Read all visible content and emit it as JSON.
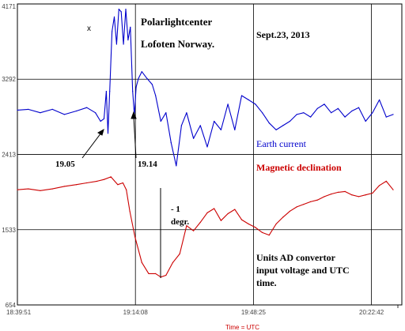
{
  "chart_data": {
    "type": "line",
    "title": "Polarlightcenter",
    "subtitle": "Lofoten Norway.",
    "date": "Sept.23, 2013",
    "xlabel": "Time = UTC",
    "ylabel": "",
    "x_ticks": [
      "18:39:51",
      "19:14:08",
      "19:48:25",
      "20:22:42"
    ],
    "y_ticks": [
      654,
      1533,
      2413,
      3292,
      4171
    ],
    "ylim": [
      654,
      4171
    ],
    "xlim": [
      "18:39:51",
      "20:30:00"
    ],
    "grid": true,
    "colors": {
      "earth_current": "#0000cc",
      "magnetic_declination": "#cc0000",
      "grid": "#000000",
      "annotation": "#000000"
    },
    "series": [
      {
        "name": "Earth current",
        "color": "#0000cc",
        "x": [
          "18:39:51",
          "18:43:00",
          "18:46:30",
          "18:50:00",
          "18:53:30",
          "18:57:00",
          "19:00:00",
          "19:02:30",
          "19:04:00",
          "19:05:00",
          "19:05:40",
          "19:06:10",
          "19:06:40",
          "19:07:20",
          "19:08:00",
          "19:08:40",
          "19:09:20",
          "19:10:00",
          "19:10:40",
          "19:11:20",
          "19:12:00",
          "19:12:40",
          "19:13:20",
          "19:13:50",
          "19:14:20",
          "19:15:00",
          "19:16:00",
          "19:17:30",
          "19:19:00",
          "19:20:00",
          "19:21:30",
          "19:23:00",
          "19:24:30",
          "19:26:00",
          "19:27:30",
          "19:29:00",
          "19:31:00",
          "19:33:00",
          "19:35:00",
          "19:37:00",
          "19:39:00",
          "19:41:00",
          "19:43:00",
          "19:45:00",
          "19:47:00",
          "19:49:00",
          "19:51:00",
          "19:53:00",
          "19:55:00",
          "19:57:00",
          "19:59:00",
          "20:01:00",
          "20:03:00",
          "20:05:00",
          "20:07:00",
          "20:09:00",
          "20:11:00",
          "20:13:00",
          "20:15:00",
          "20:17:00",
          "20:19:00",
          "20:21:00",
          "20:23:00",
          "20:25:00",
          "20:27:00",
          "20:29:00"
        ],
        "values": [
          2930,
          2940,
          2900,
          2940,
          2880,
          2920,
          2960,
          2900,
          2800,
          2830,
          3150,
          2660,
          3150,
          3850,
          4020,
          3700,
          4110,
          4080,
          3700,
          4110,
          3750,
          3900,
          3150,
          2870,
          3200,
          3300,
          3380,
          3300,
          3230,
          3100,
          2800,
          2900,
          2550,
          2280,
          2750,
          2900,
          2600,
          2750,
          2500,
          2800,
          2700,
          3000,
          2700,
          3100,
          3050,
          3000,
          2900,
          2780,
          2700,
          2750,
          2800,
          2880,
          2900,
          2850,
          2950,
          3000,
          2900,
          2950,
          2850,
          2920,
          2960,
          2800,
          2900,
          3050,
          2850,
          2880
        ]
      },
      {
        "name": "Magnetic declination",
        "color": "#cc0000",
        "x": [
          "18:39:51",
          "18:43:00",
          "18:46:30",
          "18:50:00",
          "18:53:30",
          "18:57:00",
          "19:00:00",
          "19:03:00",
          "19:05:00",
          "19:07:00",
          "19:09:00",
          "19:10:30",
          "19:11:30",
          "19:12:30",
          "19:14:00",
          "19:16:00",
          "19:18:00",
          "19:20:00",
          "19:21:30",
          "19:23:00",
          "19:25:00",
          "19:27:00",
          "19:29:00",
          "19:31:00",
          "19:33:00",
          "19:35:00",
          "19:37:00",
          "19:39:00",
          "19:41:00",
          "19:43:00",
          "19:45:00",
          "19:47:00",
          "19:49:00",
          "19:51:00",
          "19:53:00",
          "19:55:00",
          "19:57:00",
          "19:59:00",
          "20:01:00",
          "20:03:00",
          "20:05:00",
          "20:07:00",
          "20:09:00",
          "20:11:00",
          "20:13:00",
          "20:15:00",
          "20:17:00",
          "20:19:00",
          "20:21:00",
          "20:23:00",
          "20:25:00",
          "20:27:00",
          "20:29:00"
        ],
        "values": [
          2000,
          2010,
          1990,
          2010,
          2040,
          2060,
          2080,
          2100,
          2120,
          2150,
          2060,
          2080,
          2000,
          1750,
          1450,
          1150,
          1020,
          1020,
          980,
          1000,
          1150,
          1250,
          1580,
          1520,
          1620,
          1730,
          1780,
          1640,
          1720,
          1770,
          1650,
          1600,
          1560,
          1500,
          1470,
          1600,
          1680,
          1750,
          1800,
          1830,
          1860,
          1880,
          1920,
          1950,
          1970,
          1980,
          1940,
          1920,
          1940,
          1960,
          2050,
          2100,
          2000
        ]
      }
    ],
    "annotations": {
      "marker_x": "x",
      "t1": "19.05",
      "t2": "19.14",
      "earth_current_label": "Earth current",
      "magnetic_declination_label": "Magnetic declination",
      "scale_line1": "- 1",
      "scale_line2": "degr.",
      "units_line1": "Units AD convertor",
      "units_line2": "input voltage and UTC",
      "units_line3": "time."
    }
  }
}
